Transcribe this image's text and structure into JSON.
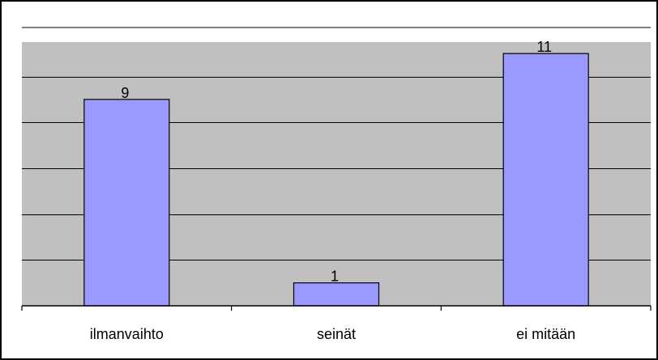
{
  "chart_data": {
    "type": "bar",
    "categories": [
      "ilmanvaihto",
      "seinät",
      "ei mitään"
    ],
    "values": [
      9,
      1,
      11
    ],
    "title": "",
    "xlabel": "",
    "ylabel": "",
    "ylim": [
      0,
      11.5
    ],
    "y_gridline_step": 2,
    "grid": true,
    "legend": "none",
    "data_labels": true,
    "colors": {
      "plot_background": "#c0c0c0",
      "bar_fill": "#9999ff",
      "bar_stroke": "#000000",
      "gridline": "#000000",
      "frame": "#000000"
    }
  }
}
